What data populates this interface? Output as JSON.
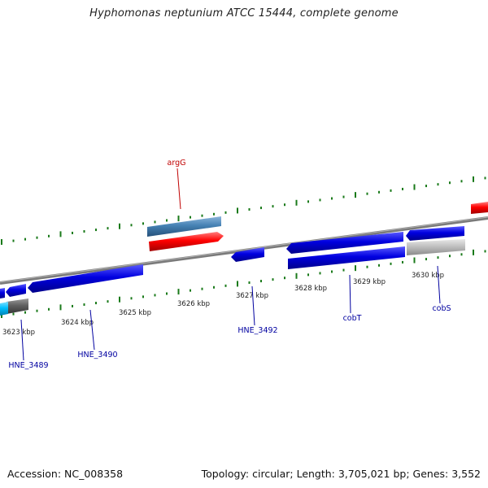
{
  "title": "Hyphomonas neptunium ATCC 15444, complete genome",
  "footer": {
    "accession": "Accession: NC_008358",
    "stats": "Topology: circular; Length: 3,705,021 bp; Genes: 3,552"
  },
  "colors": {
    "backbone": "#808080",
    "tick": "#1a7a1a",
    "forward_gene": "#0000e0",
    "gene_label": "#0000a0",
    "highlight_gene": "#ff0000",
    "highlight_label": "#c00000",
    "rna": "#4682b4",
    "pseudo": "#c0c0c0",
    "other_dark": "#606060",
    "other_light": "#00bfff"
  },
  "scale_labels": [
    {
      "text": "3623 kbp"
    },
    {
      "text": "3624 kbp"
    },
    {
      "text": "3625 kbp"
    },
    {
      "text": "3626 kbp"
    },
    {
      "text": "3627 kbp"
    },
    {
      "text": "3628 kbp"
    },
    {
      "text": "3629 kbp"
    },
    {
      "text": "3630 kbp"
    }
  ],
  "gene_labels": [
    {
      "text": "argG",
      "kind": "highlight"
    },
    {
      "text": "HNE_3489",
      "kind": "normal"
    },
    {
      "text": "HNE_3490",
      "kind": "normal"
    },
    {
      "text": "HNE_3492",
      "kind": "normal"
    },
    {
      "text": "cobT",
      "kind": "normal"
    },
    {
      "text": "cobS",
      "kind": "normal"
    }
  ]
}
